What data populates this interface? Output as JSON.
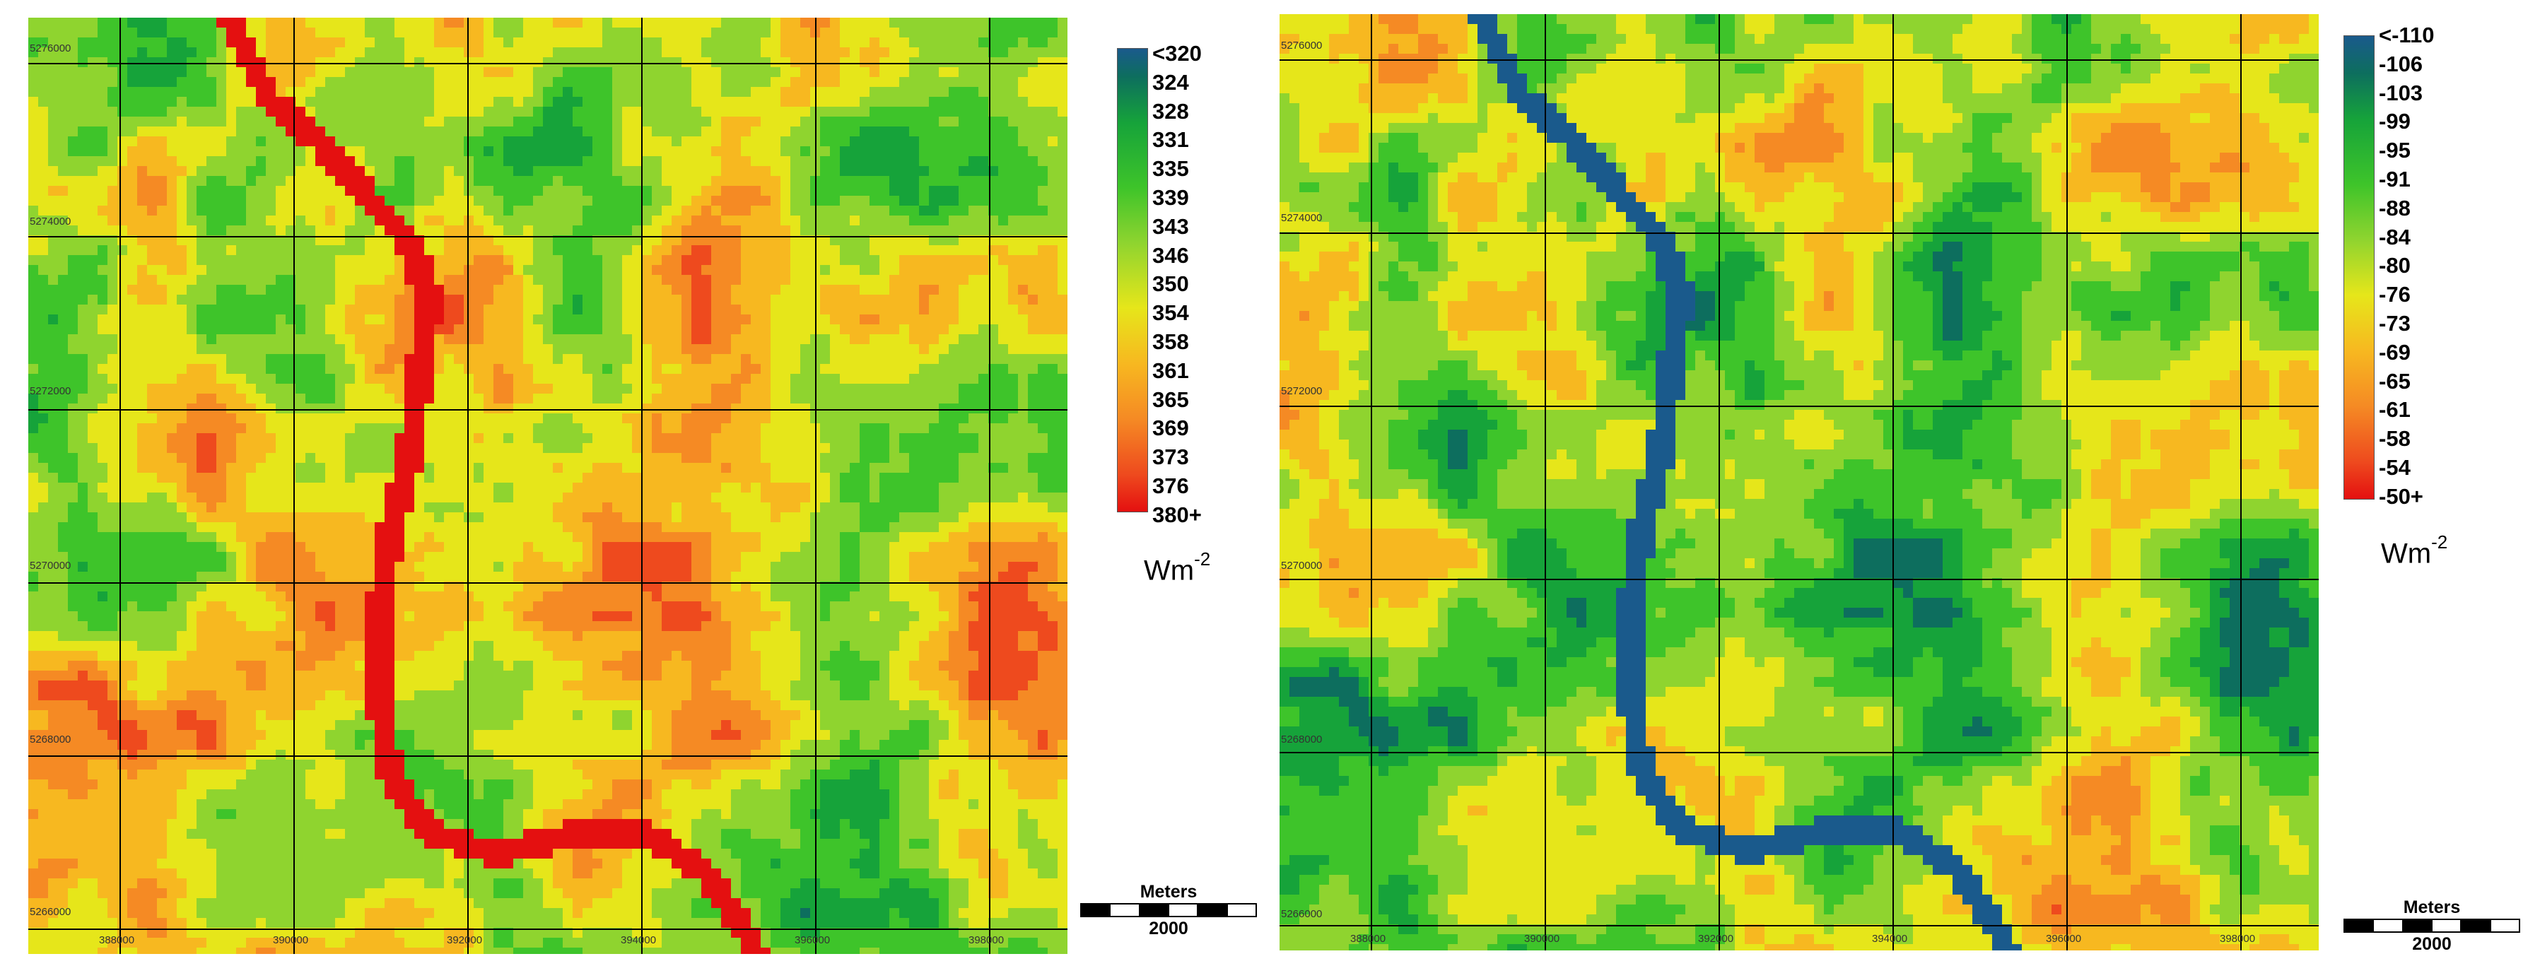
{
  "maps": [
    {
      "id": "left",
      "palette": [
        "#1a5a8c",
        "#0d6e5e",
        "#16a33a",
        "#3ec42a",
        "#8fd42f",
        "#e6e61a",
        "#f7b820",
        "#f58a24",
        "#ee4a1e",
        "#e41010"
      ],
      "legend": {
        "labels": [
          "<320",
          "324",
          "328",
          "331",
          "335",
          "339",
          "343",
          "346",
          "350",
          "354",
          "358",
          "361",
          "365",
          "369",
          "373",
          "376",
          "380+"
        ],
        "unit": "Wm",
        "unit_exponent": "-2"
      },
      "northing_labels": [
        "5276000",
        "5274000",
        "5272000",
        "5270000",
        "5268000",
        "5266000"
      ],
      "easting_labels": [
        "388000",
        "390000",
        "392000",
        "394000",
        "396000",
        "398000"
      ],
      "scale_bar": {
        "title": "Meters",
        "value": "2000"
      }
    },
    {
      "id": "right",
      "palette": [
        "#1a5a8c",
        "#0d6e5e",
        "#16a33a",
        "#3ec42a",
        "#8fd42f",
        "#e6e61a",
        "#f7b820",
        "#f58a24",
        "#ee4a1e",
        "#e41010"
      ],
      "legend": {
        "labels": [
          "<-110",
          "-106",
          "-103",
          "-99",
          "-95",
          "-91",
          "-88",
          "-84",
          "-80",
          "-76",
          "-73",
          "-69",
          "-65",
          "-61",
          "-58",
          "-54",
          "-50+"
        ],
        "unit": "Wm",
        "unit_exponent": "-2"
      },
      "northing_labels": [
        "5276000",
        "5274000",
        "5272000",
        "5270000",
        "5268000",
        "5266000"
      ],
      "easting_labels": [
        "388000",
        "390000",
        "392000",
        "394000",
        "396000",
        "398000"
      ],
      "scale_bar": {
        "title": "Meters",
        "value": "2000"
      }
    }
  ]
}
